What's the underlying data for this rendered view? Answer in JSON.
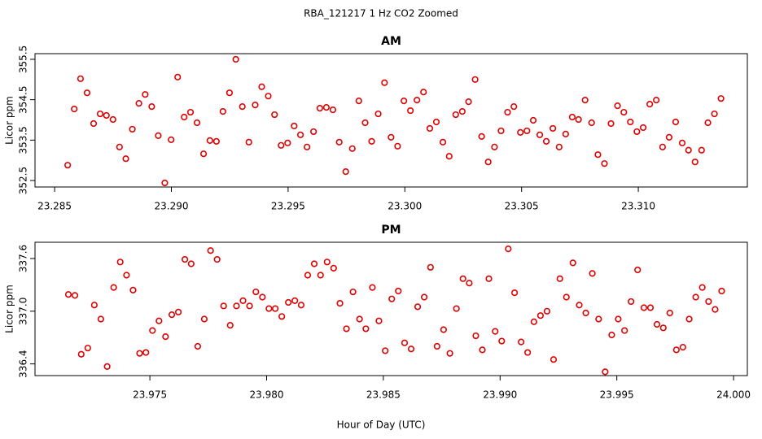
{
  "title": "RBA_121217  1 Hz CO2 Zoomed",
  "xlabel": "Hour of Day (UTC)",
  "chart_data": [
    {
      "type": "scatter",
      "title": "AM",
      "ylabel": "Licor ppm",
      "color": "#e00000",
      "xlim": [
        23.28416,
        23.31467
      ],
      "ylim": [
        352.34,
        355.64
      ],
      "xticks": [
        23.285,
        {
          "value": 23.29,
          "label": "23.290"
        },
        23.295,
        {
          "value": 23.3,
          "label": "23.300"
        },
        23.305,
        {
          "value": 23.31,
          "label": "23.310"
        }
      ],
      "yticks": [
        352.5,
        353.5,
        354.5,
        355.5
      ],
      "x": [
        23.28556,
        23.28584,
        23.28611,
        23.28639,
        23.28667,
        23.28695,
        23.28722,
        23.2875,
        23.28778,
        23.28805,
        23.28833,
        23.28861,
        23.28888,
        23.28916,
        23.28944,
        23.28972,
        23.28999,
        23.29027,
        23.29055,
        23.29082,
        23.2911,
        23.29138,
        23.29165,
        23.29193,
        23.29221,
        23.29249,
        23.29276,
        23.29304,
        23.29332,
        23.29359,
        23.29387,
        23.29415,
        23.29442,
        23.2947,
        23.29498,
        23.29526,
        23.29553,
        23.29581,
        23.29609,
        23.29636,
        23.29664,
        23.29692,
        23.29719,
        23.29747,
        23.29775,
        23.29803,
        23.2983,
        23.29858,
        23.29886,
        23.29913,
        23.29941,
        23.29969,
        23.29996,
        23.30024,
        23.30052,
        23.3008,
        23.30107,
        23.30135,
        23.30163,
        23.3019,
        23.30218,
        23.30246,
        23.30273,
        23.30301,
        23.30329,
        23.30357,
        23.30384,
        23.30412,
        23.3044,
        23.30467,
        23.30495,
        23.30523,
        23.3055,
        23.30578,
        23.30606,
        23.30634,
        23.30661,
        23.30689,
        23.30717,
        23.30744,
        23.30772,
        23.308,
        23.30827,
        23.30855,
        23.30883,
        23.30911,
        23.30938,
        23.30966,
        23.30994,
        23.31021,
        23.31049,
        23.31077,
        23.31104,
        23.31132,
        23.3116,
        23.31188,
        23.31215,
        23.31243,
        23.31271,
        23.31298,
        23.31326,
        23.31354
      ],
      "values": [
        352.88,
        354.27,
        355.02,
        354.67,
        353.91,
        354.15,
        354.11,
        354.01,
        353.33,
        353.04,
        353.77,
        354.41,
        354.63,
        354.33,
        353.61,
        352.44,
        353.51,
        355.06,
        354.07,
        354.19,
        353.93,
        353.16,
        353.49,
        353.47,
        354.21,
        354.67,
        355.5,
        354.33,
        353.45,
        354.37,
        354.82,
        354.59,
        354.13,
        353.37,
        353.43,
        353.85,
        353.63,
        353.33,
        353.71,
        354.29,
        354.31,
        354.25,
        353.45,
        352.72,
        353.29,
        354.47,
        353.93,
        353.47,
        354.15,
        354.92,
        353.57,
        353.35,
        354.47,
        354.23,
        354.49,
        354.69,
        353.79,
        353.95,
        353.45,
        353.1,
        354.13,
        354.21,
        354.45,
        355.0,
        353.59,
        352.96,
        353.33,
        353.73,
        354.19,
        354.33,
        353.69,
        353.73,
        353.99,
        353.63,
        353.47,
        353.79,
        353.33,
        353.65,
        354.07,
        354.01,
        354.49,
        353.93,
        353.14,
        352.92,
        353.91,
        354.35,
        354.19,
        353.95,
        353.71,
        353.81,
        354.39,
        354.49,
        353.33,
        353.57,
        353.95,
        353.43,
        353.25,
        352.96,
        353.25,
        353.93,
        354.15,
        354.53
      ]
    },
    {
      "type": "scatter",
      "title": "PM",
      "ylabel": "Licor ppm",
      "color": "#e00000",
      "xlim": [
        23.97008,
        24.00059
      ],
      "ylim": [
        336.267,
        337.785
      ],
      "xticks": [
        23.975,
        {
          "value": 23.98,
          "label": "23.980"
        },
        23.985,
        {
          "value": 23.99,
          "label": "23.990"
        },
        23.995,
        {
          "value": 24.0,
          "label": "24.000"
        }
      ],
      "yticks": [
        336.4,
        {
          "value": 337.0,
          "label": "337.0"
        },
        337.6
      ],
      "x": [
        23.97151,
        23.97179,
        23.97206,
        23.97234,
        23.97262,
        23.9729,
        23.97317,
        23.97345,
        23.97373,
        23.974,
        23.97428,
        23.97456,
        23.97483,
        23.97511,
        23.97539,
        23.97567,
        23.97594,
        23.97622,
        23.9765,
        23.97677,
        23.97705,
        23.97733,
        23.9776,
        23.97788,
        23.97816,
        23.97844,
        23.97871,
        23.97899,
        23.97927,
        23.97954,
        23.97982,
        23.9801,
        23.98037,
        23.98065,
        23.98093,
        23.98121,
        23.98148,
        23.98176,
        23.98204,
        23.98231,
        23.98259,
        23.98287,
        23.98314,
        23.98342,
        23.9837,
        23.98398,
        23.98425,
        23.98453,
        23.98481,
        23.98508,
        23.98536,
        23.98564,
        23.98591,
        23.98619,
        23.98647,
        23.98675,
        23.98702,
        23.9873,
        23.98758,
        23.98785,
        23.98813,
        23.98841,
        23.98868,
        23.98896,
        23.98924,
        23.98952,
        23.98979,
        23.99007,
        23.99035,
        23.99062,
        23.9909,
        23.99118,
        23.99145,
        23.99173,
        23.99201,
        23.99229,
        23.99256,
        23.99284,
        23.99312,
        23.99339,
        23.99367,
        23.99395,
        23.99422,
        23.9945,
        23.99478,
        23.99506,
        23.99533,
        23.99561,
        23.99589,
        23.99616,
        23.99644,
        23.99672,
        23.99699,
        23.99727,
        23.99755,
        23.99783,
        23.9981,
        23.99838,
        23.99866,
        23.99893,
        23.99921,
        23.99949
      ],
      "values": [
        337.19,
        337.18,
        336.51,
        336.58,
        337.07,
        336.91,
        336.37,
        337.27,
        337.56,
        337.41,
        337.24,
        336.52,
        336.53,
        336.78,
        336.89,
        336.71,
        336.96,
        336.99,
        337.59,
        337.54,
        336.6,
        336.91,
        337.69,
        337.59,
        337.06,
        336.84,
        337.06,
        337.12,
        337.06,
        337.22,
        337.16,
        337.03,
        337.03,
        336.94,
        337.1,
        337.12,
        337.07,
        337.41,
        337.54,
        337.41,
        337.56,
        337.49,
        337.09,
        336.8,
        337.22,
        336.91,
        336.8,
        337.27,
        336.89,
        336.55,
        337.14,
        337.23,
        336.64,
        336.57,
        337.05,
        337.16,
        337.5,
        336.6,
        336.79,
        336.52,
        337.03,
        337.37,
        337.32,
        336.72,
        336.56,
        337.37,
        336.77,
        336.66,
        337.71,
        337.21,
        336.65,
        336.53,
        336.88,
        336.95,
        337.0,
        336.45,
        337.37,
        337.16,
        337.55,
        337.07,
        336.98,
        337.43,
        336.91,
        336.31,
        336.73,
        336.91,
        336.78,
        337.11,
        337.47,
        337.04,
        337.04,
        336.85,
        336.81,
        336.98,
        336.56,
        336.59,
        336.91,
        337.16,
        337.27,
        337.11,
        337.02,
        337.23
      ]
    }
  ]
}
